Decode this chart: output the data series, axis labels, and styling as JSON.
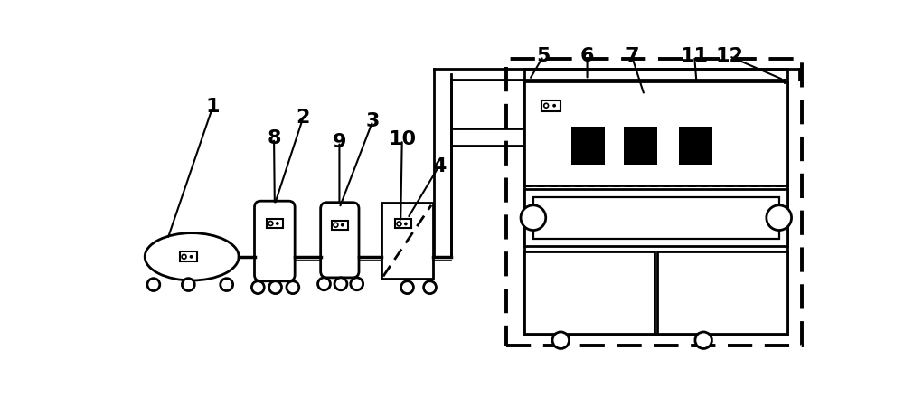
{
  "bg_color": "#ffffff",
  "line_color": "#000000",
  "lw": 2.0,
  "label_fontsize": 16,
  "fig_w": 10.0,
  "fig_h": 4.4,
  "dpi": 100,
  "xlim": [
    0,
    10
  ],
  "ylim": [
    0,
    4.4
  ]
}
